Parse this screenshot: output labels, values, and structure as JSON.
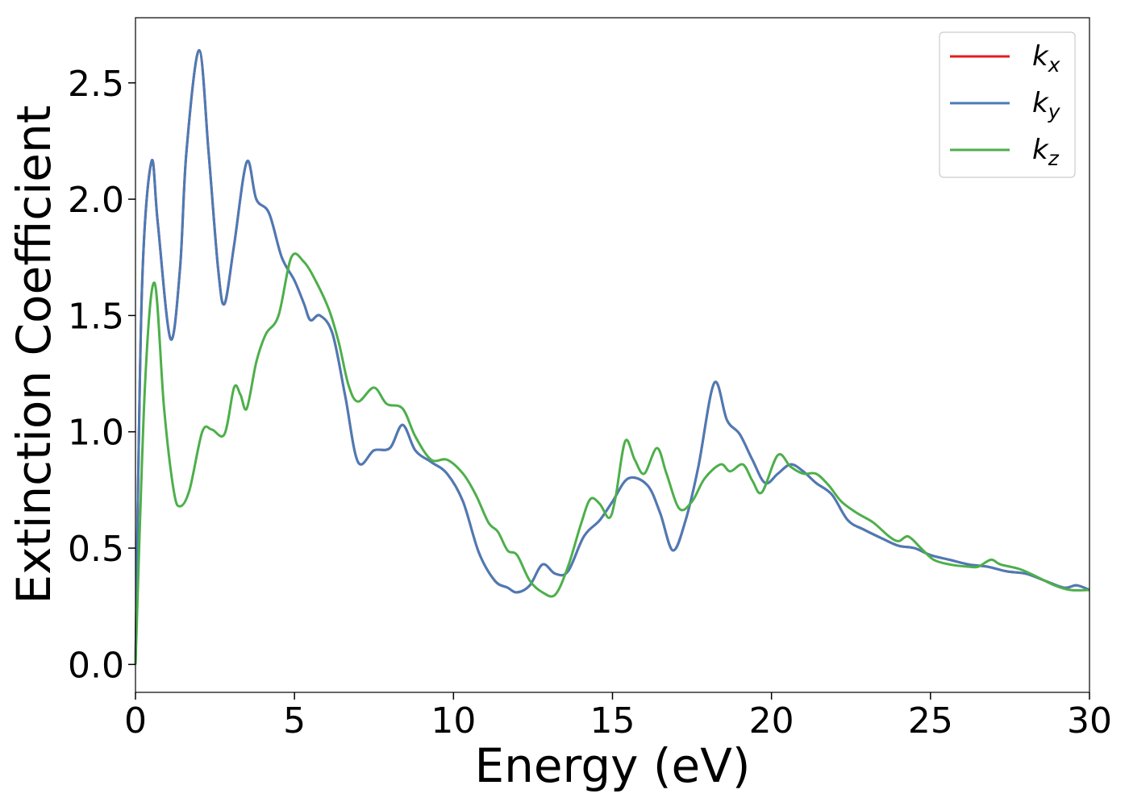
{
  "chart_data": {
    "type": "line",
    "xlabel": "Energy (eV)",
    "ylabel": "Extinction Coefficient",
    "xlim": [
      0,
      30
    ],
    "ylim": [
      -0.12,
      2.78
    ],
    "xticks": [
      0,
      5,
      10,
      15,
      20,
      25,
      30
    ],
    "xtick_labels": [
      "0",
      "5",
      "10",
      "15",
      "20",
      "25",
      "30"
    ],
    "yticks": [
      0.0,
      0.5,
      1.0,
      1.5,
      2.0,
      2.5
    ],
    "ytick_labels": [
      "0.0",
      "0.5",
      "1.0",
      "1.5",
      "2.0",
      "2.5"
    ],
    "grid": false,
    "legend_position": "top-right",
    "series": [
      {
        "name": "k",
        "subscript": "x",
        "color": "#e41a1c",
        "points": [
          [
            0,
            0
          ],
          [
            0.2,
            1.6
          ],
          [
            0.5,
            2.16
          ],
          [
            0.7,
            1.9
          ],
          [
            1.1,
            1.4
          ],
          [
            1.4,
            1.7
          ],
          [
            1.6,
            2.2
          ],
          [
            2.0,
            2.64
          ],
          [
            2.3,
            2.2
          ],
          [
            2.6,
            1.7
          ],
          [
            2.8,
            1.55
          ],
          [
            3.1,
            1.8
          ],
          [
            3.5,
            2.16
          ],
          [
            3.8,
            2.0
          ],
          [
            4.2,
            1.94
          ],
          [
            4.6,
            1.75
          ],
          [
            5.0,
            1.65
          ],
          [
            5.3,
            1.55
          ],
          [
            5.5,
            1.48
          ],
          [
            5.8,
            1.5
          ],
          [
            6.2,
            1.42
          ],
          [
            6.6,
            1.15
          ],
          [
            7.0,
            0.87
          ],
          [
            7.5,
            0.92
          ],
          [
            8.0,
            0.93
          ],
          [
            8.4,
            1.03
          ],
          [
            8.8,
            0.92
          ],
          [
            9.3,
            0.87
          ],
          [
            9.8,
            0.82
          ],
          [
            10.3,
            0.7
          ],
          [
            10.8,
            0.48
          ],
          [
            11.3,
            0.36
          ],
          [
            11.7,
            0.33
          ],
          [
            12.0,
            0.31
          ],
          [
            12.4,
            0.34
          ],
          [
            12.8,
            0.43
          ],
          [
            13.2,
            0.39
          ],
          [
            13.6,
            0.4
          ],
          [
            14.1,
            0.55
          ],
          [
            14.6,
            0.62
          ],
          [
            15.0,
            0.7
          ],
          [
            15.5,
            0.8
          ],
          [
            16.1,
            0.77
          ],
          [
            16.5,
            0.65
          ],
          [
            16.9,
            0.49
          ],
          [
            17.3,
            0.62
          ],
          [
            17.7,
            0.85
          ],
          [
            18.2,
            1.21
          ],
          [
            18.6,
            1.05
          ],
          [
            19.0,
            0.99
          ],
          [
            19.4,
            0.88
          ],
          [
            19.8,
            0.78
          ],
          [
            20.2,
            0.82
          ],
          [
            20.6,
            0.86
          ],
          [
            21.0,
            0.83
          ],
          [
            21.4,
            0.78
          ],
          [
            21.9,
            0.73
          ],
          [
            22.4,
            0.62
          ],
          [
            22.9,
            0.58
          ],
          [
            23.5,
            0.54
          ],
          [
            24.0,
            0.51
          ],
          [
            24.5,
            0.5
          ],
          [
            25.0,
            0.47
          ],
          [
            25.6,
            0.45
          ],
          [
            26.2,
            0.43
          ],
          [
            26.8,
            0.42
          ],
          [
            27.4,
            0.4
          ],
          [
            28.0,
            0.39
          ],
          [
            28.6,
            0.36
          ],
          [
            29.2,
            0.33
          ],
          [
            29.6,
            0.34
          ],
          [
            30.0,
            0.32
          ]
        ]
      },
      {
        "name": "k",
        "subscript": "y",
        "color": "#4a7bb7",
        "points": [
          [
            0,
            0
          ],
          [
            0.2,
            1.6
          ],
          [
            0.5,
            2.16
          ],
          [
            0.7,
            1.9
          ],
          [
            1.1,
            1.4
          ],
          [
            1.4,
            1.7
          ],
          [
            1.6,
            2.2
          ],
          [
            2.0,
            2.64
          ],
          [
            2.3,
            2.2
          ],
          [
            2.6,
            1.7
          ],
          [
            2.8,
            1.55
          ],
          [
            3.1,
            1.8
          ],
          [
            3.5,
            2.16
          ],
          [
            3.8,
            2.0
          ],
          [
            4.2,
            1.94
          ],
          [
            4.6,
            1.75
          ],
          [
            5.0,
            1.65
          ],
          [
            5.3,
            1.55
          ],
          [
            5.5,
            1.48
          ],
          [
            5.8,
            1.5
          ],
          [
            6.2,
            1.42
          ],
          [
            6.6,
            1.15
          ],
          [
            7.0,
            0.87
          ],
          [
            7.5,
            0.92
          ],
          [
            8.0,
            0.93
          ],
          [
            8.4,
            1.03
          ],
          [
            8.8,
            0.92
          ],
          [
            9.3,
            0.87
          ],
          [
            9.8,
            0.82
          ],
          [
            10.3,
            0.7
          ],
          [
            10.8,
            0.48
          ],
          [
            11.3,
            0.36
          ],
          [
            11.7,
            0.33
          ],
          [
            12.0,
            0.31
          ],
          [
            12.4,
            0.34
          ],
          [
            12.8,
            0.43
          ],
          [
            13.2,
            0.39
          ],
          [
            13.6,
            0.4
          ],
          [
            14.1,
            0.55
          ],
          [
            14.6,
            0.62
          ],
          [
            15.0,
            0.7
          ],
          [
            15.5,
            0.8
          ],
          [
            16.1,
            0.77
          ],
          [
            16.5,
            0.65
          ],
          [
            16.9,
            0.49
          ],
          [
            17.3,
            0.62
          ],
          [
            17.7,
            0.85
          ],
          [
            18.2,
            1.21
          ],
          [
            18.6,
            1.05
          ],
          [
            19.0,
            0.99
          ],
          [
            19.4,
            0.88
          ],
          [
            19.8,
            0.78
          ],
          [
            20.2,
            0.82
          ],
          [
            20.6,
            0.86
          ],
          [
            21.0,
            0.83
          ],
          [
            21.4,
            0.78
          ],
          [
            21.9,
            0.73
          ],
          [
            22.4,
            0.62
          ],
          [
            22.9,
            0.58
          ],
          [
            23.5,
            0.54
          ],
          [
            24.0,
            0.51
          ],
          [
            24.5,
            0.5
          ],
          [
            25.0,
            0.47
          ],
          [
            25.6,
            0.45
          ],
          [
            26.2,
            0.43
          ],
          [
            26.8,
            0.42
          ],
          [
            27.4,
            0.4
          ],
          [
            28.0,
            0.39
          ],
          [
            28.6,
            0.36
          ],
          [
            29.2,
            0.33
          ],
          [
            29.6,
            0.34
          ],
          [
            30.0,
            0.32
          ]
        ]
      },
      {
        "name": "k",
        "subscript": "z",
        "color": "#4daf4a",
        "points": [
          [
            0,
            0
          ],
          [
            0.3,
            1.2
          ],
          [
            0.6,
            1.64
          ],
          [
            0.9,
            1.1
          ],
          [
            1.2,
            0.75
          ],
          [
            1.4,
            0.68
          ],
          [
            1.7,
            0.75
          ],
          [
            2.1,
            1.0
          ],
          [
            2.4,
            1.01
          ],
          [
            2.8,
            0.99
          ],
          [
            3.1,
            1.19
          ],
          [
            3.3,
            1.16
          ],
          [
            3.5,
            1.1
          ],
          [
            3.8,
            1.3
          ],
          [
            4.1,
            1.42
          ],
          [
            4.5,
            1.5
          ],
          [
            4.9,
            1.75
          ],
          [
            5.3,
            1.73
          ],
          [
            5.7,
            1.64
          ],
          [
            6.1,
            1.52
          ],
          [
            6.4,
            1.38
          ],
          [
            6.7,
            1.2
          ],
          [
            7.0,
            1.13
          ],
          [
            7.5,
            1.19
          ],
          [
            7.9,
            1.12
          ],
          [
            8.4,
            1.1
          ],
          [
            8.8,
            0.98
          ],
          [
            9.3,
            0.88
          ],
          [
            9.8,
            0.88
          ],
          [
            10.3,
            0.82
          ],
          [
            10.7,
            0.73
          ],
          [
            11.1,
            0.61
          ],
          [
            11.4,
            0.57
          ],
          [
            11.7,
            0.49
          ],
          [
            12.0,
            0.47
          ],
          [
            12.4,
            0.36
          ],
          [
            12.8,
            0.31
          ],
          [
            13.2,
            0.3
          ],
          [
            13.6,
            0.42
          ],
          [
            14.0,
            0.6
          ],
          [
            14.3,
            0.71
          ],
          [
            14.6,
            0.69
          ],
          [
            14.9,
            0.63
          ],
          [
            15.1,
            0.72
          ],
          [
            15.4,
            0.96
          ],
          [
            15.7,
            0.88
          ],
          [
            16.0,
            0.82
          ],
          [
            16.4,
            0.93
          ],
          [
            16.7,
            0.82
          ],
          [
            17.1,
            0.67
          ],
          [
            17.5,
            0.7
          ],
          [
            17.9,
            0.8
          ],
          [
            18.4,
            0.86
          ],
          [
            18.7,
            0.83
          ],
          [
            19.1,
            0.86
          ],
          [
            19.4,
            0.79
          ],
          [
            19.7,
            0.74
          ],
          [
            20.2,
            0.9
          ],
          [
            20.6,
            0.85
          ],
          [
            21.0,
            0.82
          ],
          [
            21.4,
            0.82
          ],
          [
            21.8,
            0.77
          ],
          [
            22.2,
            0.7
          ],
          [
            22.7,
            0.65
          ],
          [
            23.2,
            0.61
          ],
          [
            23.7,
            0.55
          ],
          [
            24.0,
            0.53
          ],
          [
            24.3,
            0.55
          ],
          [
            24.7,
            0.5
          ],
          [
            25.1,
            0.45
          ],
          [
            25.6,
            0.43
          ],
          [
            26.2,
            0.42
          ],
          [
            26.5,
            0.42
          ],
          [
            26.9,
            0.45
          ],
          [
            27.2,
            0.43
          ],
          [
            27.8,
            0.41
          ],
          [
            28.3,
            0.38
          ],
          [
            28.9,
            0.34
          ],
          [
            29.4,
            0.32
          ],
          [
            30.0,
            0.32
          ]
        ]
      }
    ]
  }
}
